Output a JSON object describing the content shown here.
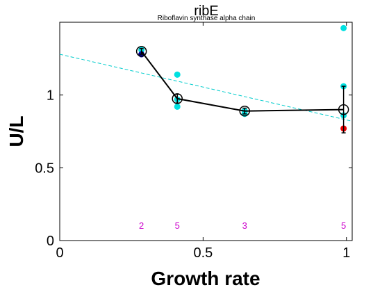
{
  "chart_data": {
    "type": "scatter",
    "title": "ribE",
    "subtitle": "Riboflavin synthase alpha chain",
    "xlabel": "Growth rate",
    "ylabel": "U/L",
    "xlim": [
      0,
      1.02
    ],
    "ylim": [
      0,
      1.5
    ],
    "xticks": [
      0,
      0.5,
      1
    ],
    "xtick_labels": [
      "0",
      "0.5",
      "1"
    ],
    "yticks": [
      0,
      0.5,
      1
    ],
    "ytick_labels": [
      "0",
      "0.5",
      "1"
    ],
    "grid": false,
    "colors": {
      "cyan": "#00e0e0",
      "blue": "#0000aa",
      "red": "#ee0000",
      "mean": "#000000",
      "fit": "#00cccc",
      "count": "#cc00cc"
    },
    "cyan_points": [
      {
        "x": 0.285,
        "y": 1.31
      },
      {
        "x": 0.41,
        "y": 1.14
      },
      {
        "x": 0.41,
        "y": 0.97
      },
      {
        "x": 0.41,
        "y": 0.92
      },
      {
        "x": 0.645,
        "y": 0.89
      },
      {
        "x": 0.645,
        "y": 0.87
      },
      {
        "x": 0.99,
        "y": 1.46
      },
      {
        "x": 0.99,
        "y": 1.06
      },
      {
        "x": 0.99,
        "y": 0.86
      }
    ],
    "blue_points": [
      {
        "x": 0.285,
        "y": 1.28
      }
    ],
    "red_points": [
      {
        "x": 0.99,
        "y": 0.77
      }
    ],
    "mean_series": [
      {
        "x": 0.285,
        "y": 1.3,
        "err": 0.02
      },
      {
        "x": 0.41,
        "y": 0.975,
        "err": 0.03
      },
      {
        "x": 0.645,
        "y": 0.89,
        "err": 0.02
      },
      {
        "x": 0.99,
        "y": 0.9,
        "err": 0.16
      }
    ],
    "fit_line": {
      "x": [
        0,
        1.02
      ],
      "y": [
        1.28,
        0.82
      ]
    },
    "counts": [
      {
        "x": 0.285,
        "label": "2"
      },
      {
        "x": 0.41,
        "label": "5"
      },
      {
        "x": 0.645,
        "label": "3"
      },
      {
        "x": 0.99,
        "label": "5"
      }
    ]
  }
}
